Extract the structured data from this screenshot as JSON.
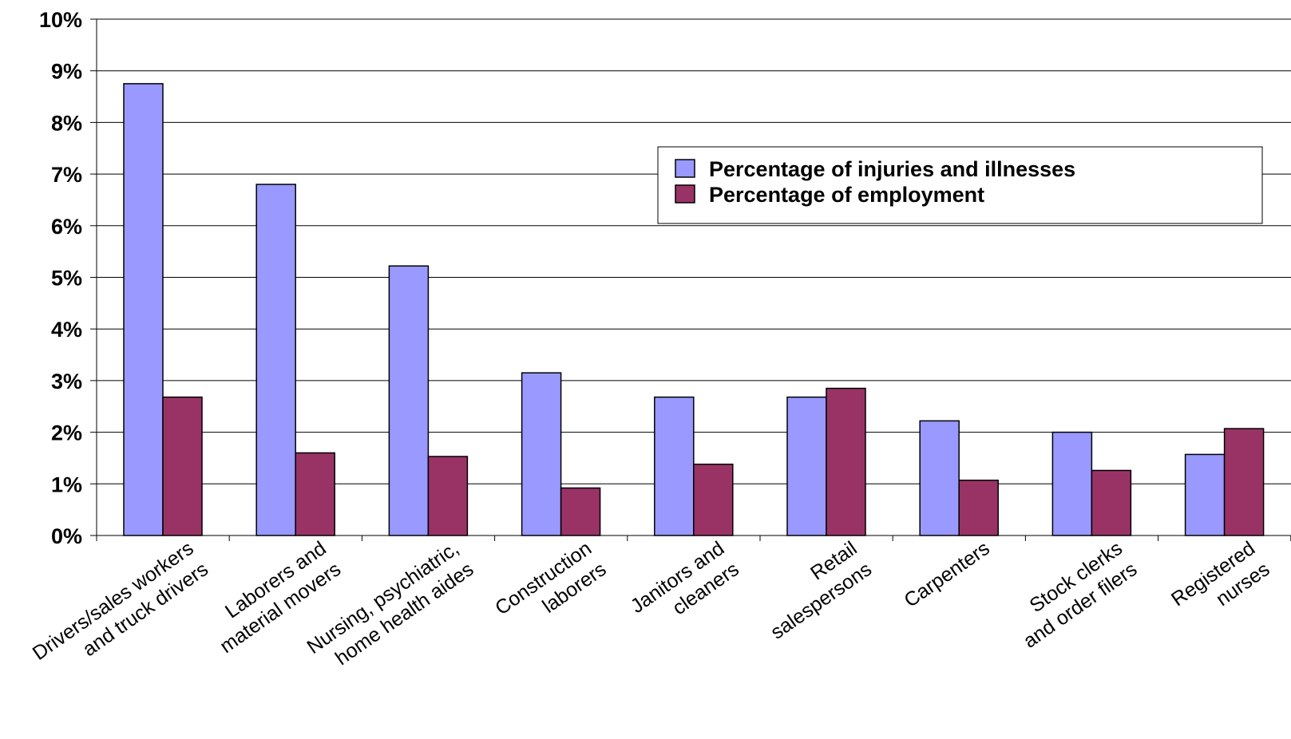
{
  "chart_data": {
    "type": "bar",
    "title": "",
    "xlabel": "",
    "ylabel": "",
    "ylim": [
      0,
      10
    ],
    "y_tick_format": "percent",
    "y_ticks": [
      "0%",
      "1%",
      "2%",
      "3%",
      "4%",
      "5%",
      "6%",
      "7%",
      "8%",
      "9%",
      "10%"
    ],
    "grid": true,
    "legend_position": "right",
    "categories": [
      [
        "Drivers/sales workers",
        "and truck drivers"
      ],
      [
        "Laborers and",
        "material movers"
      ],
      [
        "Nursing, psychiatric,",
        "home health aides"
      ],
      [
        "Construction",
        "laborers"
      ],
      [
        "Janitors and",
        "cleaners"
      ],
      [
        "Retail",
        "salespersons"
      ],
      [
        "Carpenters"
      ],
      [
        "Stock clerks",
        "and order filers"
      ],
      [
        "Registered",
        "nurses"
      ]
    ],
    "series": [
      {
        "name": "Percentage of injuries and illnesses",
        "color": "#9999ff",
        "values": [
          8.75,
          6.8,
          5.22,
          3.15,
          2.68,
          2.68,
          2.22,
          2.0,
          1.57
        ]
      },
      {
        "name": "Percentage of employment",
        "color": "#993366",
        "values": [
          2.68,
          1.6,
          1.53,
          0.92,
          1.38,
          2.85,
          1.07,
          1.26,
          2.07
        ]
      }
    ]
  }
}
